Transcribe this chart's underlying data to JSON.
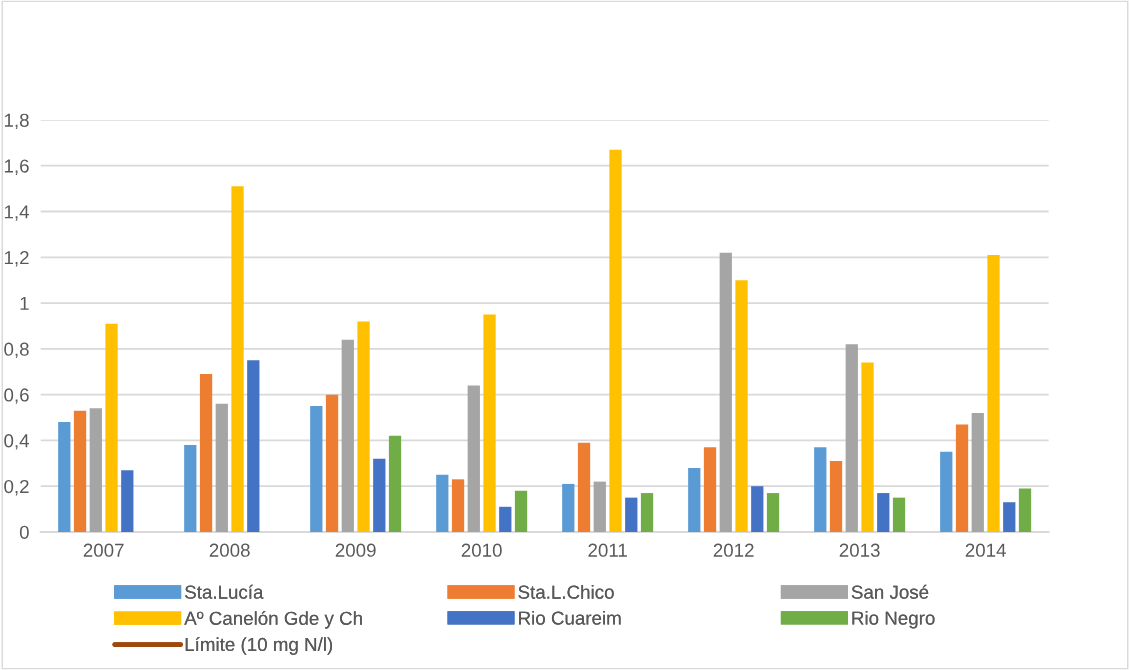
{
  "chart_data": {
    "type": "bar",
    "categories": [
      "2007",
      "2008",
      "2009",
      "2010",
      "2011",
      "2012",
      "2013",
      "2014"
    ],
    "series": [
      {
        "name": "Sta.Lucía",
        "color": "#5b9bd5",
        "values": [
          0.48,
          0.38,
          0.55,
          0.25,
          0.21,
          0.28,
          0.37,
          0.35
        ]
      },
      {
        "name": "Sta.L.Chico",
        "color": "#ed7d31",
        "values": [
          0.53,
          0.69,
          0.6,
          0.23,
          0.39,
          0.37,
          0.31,
          0.47
        ]
      },
      {
        "name": "San José",
        "color": "#a5a5a5",
        "values": [
          0.54,
          0.56,
          0.84,
          0.64,
          0.22,
          1.22,
          0.82,
          0.52
        ]
      },
      {
        "name": "Aº Canelón Gde y Ch",
        "color": "#ffc000",
        "values": [
          0.91,
          1.51,
          0.92,
          0.95,
          1.67,
          1.1,
          0.74,
          1.21
        ]
      },
      {
        "name": "Rio Cuareim",
        "color": "#4472c4",
        "values": [
          0.27,
          0.75,
          0.32,
          0.11,
          0.15,
          0.2,
          0.17,
          0.13
        ]
      },
      {
        "name": "Rio Negro",
        "color": "#70ad47",
        "values": [
          null,
          null,
          0.42,
          0.18,
          0.17,
          0.17,
          0.15,
          0.19
        ]
      },
      {
        "name": "Límite (10 mg N/l)",
        "color": "#9e480e",
        "type": "line",
        "values": [
          null,
          null,
          null,
          null,
          null,
          null,
          null,
          null
        ]
      }
    ],
    "ylim": [
      0,
      1.8
    ],
    "yticks": [
      0,
      {
        "value": 0.2,
        "label": "0,2"
      },
      {
        "value": 0.4,
        "label": "0,4"
      },
      {
        "value": 0.6,
        "label": "0,6"
      },
      {
        "value": 0.8,
        "label": "0,8"
      },
      1,
      {
        "value": 1.2,
        "label": "1,2"
      },
      {
        "value": 1.4,
        "label": "1,4"
      },
      {
        "value": 1.6,
        "label": "1,6"
      },
      {
        "value": 1.8,
        "label": "1,8"
      }
    ],
    "grid": "y",
    "legend": "bottom"
  }
}
